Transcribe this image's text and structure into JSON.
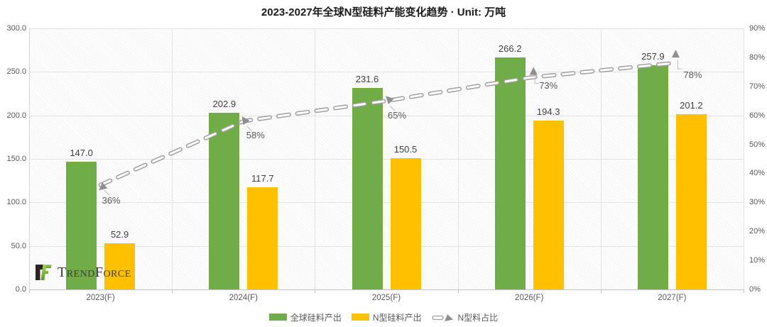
{
  "title": "2023-2027年全球N型硅料产能变化趋势 · Unit: 万吨",
  "logo": {
    "text": "TrendForce"
  },
  "chart_data": {
    "type": "bar",
    "subtype": "grouped-bars-with-percentage-line",
    "title": "2023-2027年全球N型硅料产能变化趋势 · Unit: 万吨",
    "unit": "万吨",
    "categories": [
      "2023(F)",
      "2024(F)",
      "2025(F)",
      "2026(F)",
      "2027(F)"
    ],
    "series": [
      {
        "name": "全球硅料产出",
        "type": "bar",
        "axis": "left",
        "color": "#70AD47",
        "values": [
          147.0,
          202.9,
          231.6,
          266.2,
          257.9
        ],
        "labels": [
          "147.0",
          "202.9",
          "231.6",
          "266.2",
          "257.9"
        ]
      },
      {
        "name": "N型硅料产出",
        "type": "bar",
        "axis": "left",
        "color": "#FFC000",
        "values": [
          52.9,
          117.7,
          150.5,
          194.3,
          201.2
        ],
        "labels": [
          "52.9",
          "117.7",
          "150.5",
          "194.3",
          "201.2"
        ]
      },
      {
        "name": "N型料占比",
        "type": "line",
        "axis": "right",
        "color": "#A0A0A0",
        "line_style": "dashed-outlined",
        "marker": "arrow",
        "values": [
          36,
          58,
          65,
          73,
          78
        ],
        "labels": [
          "36%",
          "58%",
          "65%",
          "73%",
          "78%"
        ]
      }
    ],
    "left_axis": {
      "min": 0,
      "max": 300,
      "ticks": [
        "300.0",
        "250.0",
        "200.0",
        "150.0",
        "100.0",
        "50.0",
        "0.0"
      ]
    },
    "right_axis": {
      "min": 0,
      "max": 90,
      "ticks": [
        "90%",
        "80%",
        "70%",
        "60%",
        "50%",
        "40%",
        "30%",
        "20%",
        "10%",
        "0%"
      ]
    },
    "grid": true,
    "legend_position": "bottom"
  }
}
